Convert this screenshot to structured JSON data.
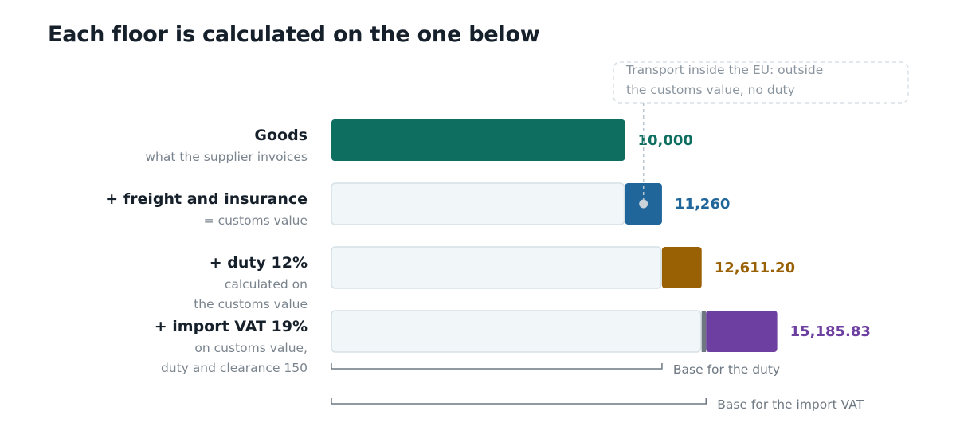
{
  "title": "Each floor is calculated on the one below",
  "colors": {
    "goods": "#0e6e60",
    "freight": "#21669a",
    "duty": "#9a6104",
    "vat": "#6d3fa0",
    "clearance": "#6e777f",
    "ghost": "#f1f6f8",
    "ghost_stroke": "#d6e1e6",
    "text": "#16202b",
    "muted": "#7a848e"
  },
  "chart_data": {
    "type": "bar",
    "orientation": "horizontal-waterfall",
    "title": "Each floor is calculated on the one below",
    "rows": [
      {
        "label": "Goods",
        "sub": [
          "what the supplier invoices"
        ],
        "start": 0,
        "end": 10000,
        "total_label": "10,000",
        "color_key": "goods"
      },
      {
        "label": "+ freight and insurance",
        "sub": [
          "= customs value"
        ],
        "start": 10000,
        "end": 11260,
        "total_label": "11,260",
        "color_key": "freight"
      },
      {
        "label": "+ duty 12%",
        "sub": [
          "calculated on",
          "the customs value"
        ],
        "start": 11260,
        "end": 12611.2,
        "total_label": "12,611.20",
        "color_key": "duty"
      },
      {
        "label": "+ import VAT 19%",
        "sub": [
          "on customs value,",
          "duty and clearance 150"
        ],
        "start": 12761.2,
        "end": 15185.83,
        "total_label": "15,185.83",
        "color_key": "vat",
        "extra": {
          "start": 12611.2,
          "end": 12761.2,
          "value": 150,
          "color_key": "clearance"
        }
      }
    ],
    "annotation": {
      "lines": [
        "Transport inside the EU: outside",
        "the customs value, no duty"
      ],
      "target_row": 1
    },
    "brackets": [
      {
        "label": "Base for the duty",
        "from": 0,
        "to": 11260
      },
      {
        "label": "Base for the import VAT",
        "from": 0,
        "to": 12761.2
      }
    ]
  }
}
